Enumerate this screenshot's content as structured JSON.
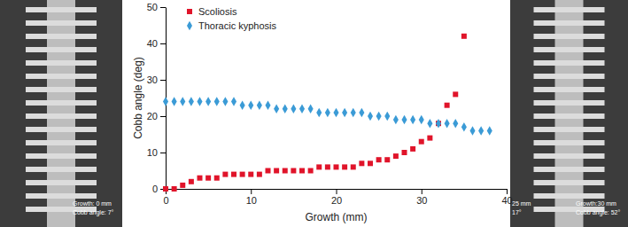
{
  "chart_data": {
    "type": "scatter",
    "x_label": "Growth (mm)",
    "y_label": "Cobb angle (deg)",
    "x": [
      0,
      1,
      2,
      3,
      4,
      5,
      6,
      7,
      8,
      9,
      10,
      11,
      12,
      13,
      14,
      15,
      16,
      17,
      18,
      19,
      20,
      21,
      22,
      23,
      24,
      25,
      26,
      27,
      28,
      29,
      30,
      31,
      32,
      33,
      34,
      35,
      36,
      37,
      38
    ],
    "series": [
      {
        "name": "Scoliosis",
        "color": "#e0142a",
        "marker": "square",
        "values": [
          0,
          0,
          1,
          2,
          3,
          3,
          3,
          4,
          4,
          4,
          4,
          4,
          5,
          5,
          5,
          5,
          5,
          5,
          6,
          6,
          6,
          6,
          6,
          7,
          7,
          8,
          8,
          9,
          10,
          11,
          13,
          14,
          18,
          23,
          26,
          42,
          null,
          null,
          null
        ]
      },
      {
        "name": "Thoracic kyphosis",
        "color": "#3b9bd6",
        "marker": "diamond",
        "values": [
          24,
          24,
          24,
          24,
          24,
          24,
          24,
          24,
          24,
          23,
          23,
          23,
          23,
          22,
          22,
          22,
          22,
          22,
          21,
          21,
          21,
          21,
          21,
          21,
          20,
          20,
          20,
          19,
          19,
          19,
          19,
          18,
          18,
          18,
          18,
          17,
          16,
          16,
          16
        ]
      }
    ],
    "xlim": [
      0,
      40
    ],
    "xticks": [
      0,
      10,
      20,
      30,
      40
    ],
    "ylim": [
      0,
      50
    ],
    "yticks": [
      0,
      10,
      20,
      30,
      40,
      50
    ],
    "legend": "upper left",
    "grid": false,
    "annotations": [
      "Growth: 0 mm",
      "Cobb angle: 7°",
      "25 mm",
      "17°",
      "Growth:30 mm",
      "Cobb angle: 52°"
    ]
  }
}
